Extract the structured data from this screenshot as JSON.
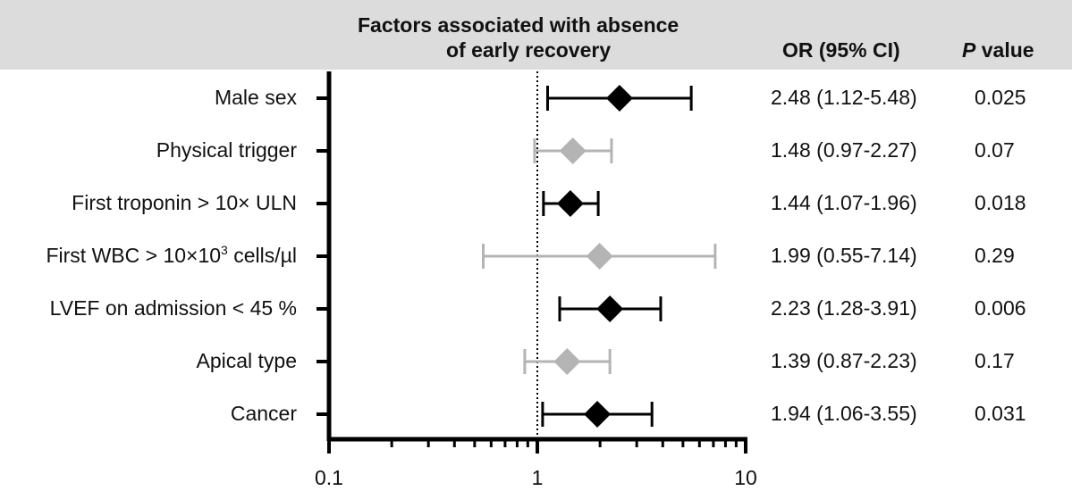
{
  "header": {
    "title_line1": "Factors associated with absence",
    "title_line2": "of early recovery",
    "or_header": "OR (95% CI)",
    "p_header_italic": "P",
    "p_header_rest": " value"
  },
  "chart_data": {
    "type": "forest",
    "title": "Factors associated with absence of early recovery",
    "x_scale": "log",
    "xlim": [
      0.1,
      10
    ],
    "x_ticks": [
      "0.1",
      "1",
      "10"
    ],
    "reference_line": 1,
    "colors": {
      "significant": "#000000",
      "nonsignificant": "#b4b4b4"
    },
    "rows": [
      {
        "label": "Male sex",
        "or": 2.48,
        "lo": 1.12,
        "hi": 5.48,
        "or_text": "2.48 (1.12-5.48)",
        "p": "0.025",
        "significant": true
      },
      {
        "label": "Physical trigger",
        "or": 1.48,
        "lo": 0.97,
        "hi": 2.27,
        "or_text": "1.48 (0.97-2.27)",
        "p": "0.07",
        "significant": false
      },
      {
        "label": "First troponin > 10× ULN",
        "or": 1.44,
        "lo": 1.07,
        "hi": 1.96,
        "or_text": "1.44 (1.07-1.96)",
        "p": "0.018",
        "significant": true
      },
      {
        "label_pre": "First WBC > 10×10",
        "label_sup": "3",
        "label_post": " cells/µl",
        "or": 1.99,
        "lo": 0.55,
        "hi": 7.14,
        "or_text": "1.99 (0.55-7.14)",
        "p": "0.29",
        "significant": false
      },
      {
        "label": "LVEF on admission < 45 %",
        "or": 2.23,
        "lo": 1.28,
        "hi": 3.91,
        "or_text": "2.23 (1.28-3.91)",
        "p": "0.006",
        "significant": true
      },
      {
        "label": "Apical type",
        "or": 1.39,
        "lo": 0.87,
        "hi": 2.23,
        "or_text": "1.39 (0.87-2.23)",
        "p": "0.17",
        "significant": false
      },
      {
        "label": "Cancer",
        "or": 1.94,
        "lo": 1.06,
        "hi": 3.55,
        "or_text": "1.94 (1.06-3.55)",
        "p": "0.031",
        "significant": true
      }
    ]
  }
}
